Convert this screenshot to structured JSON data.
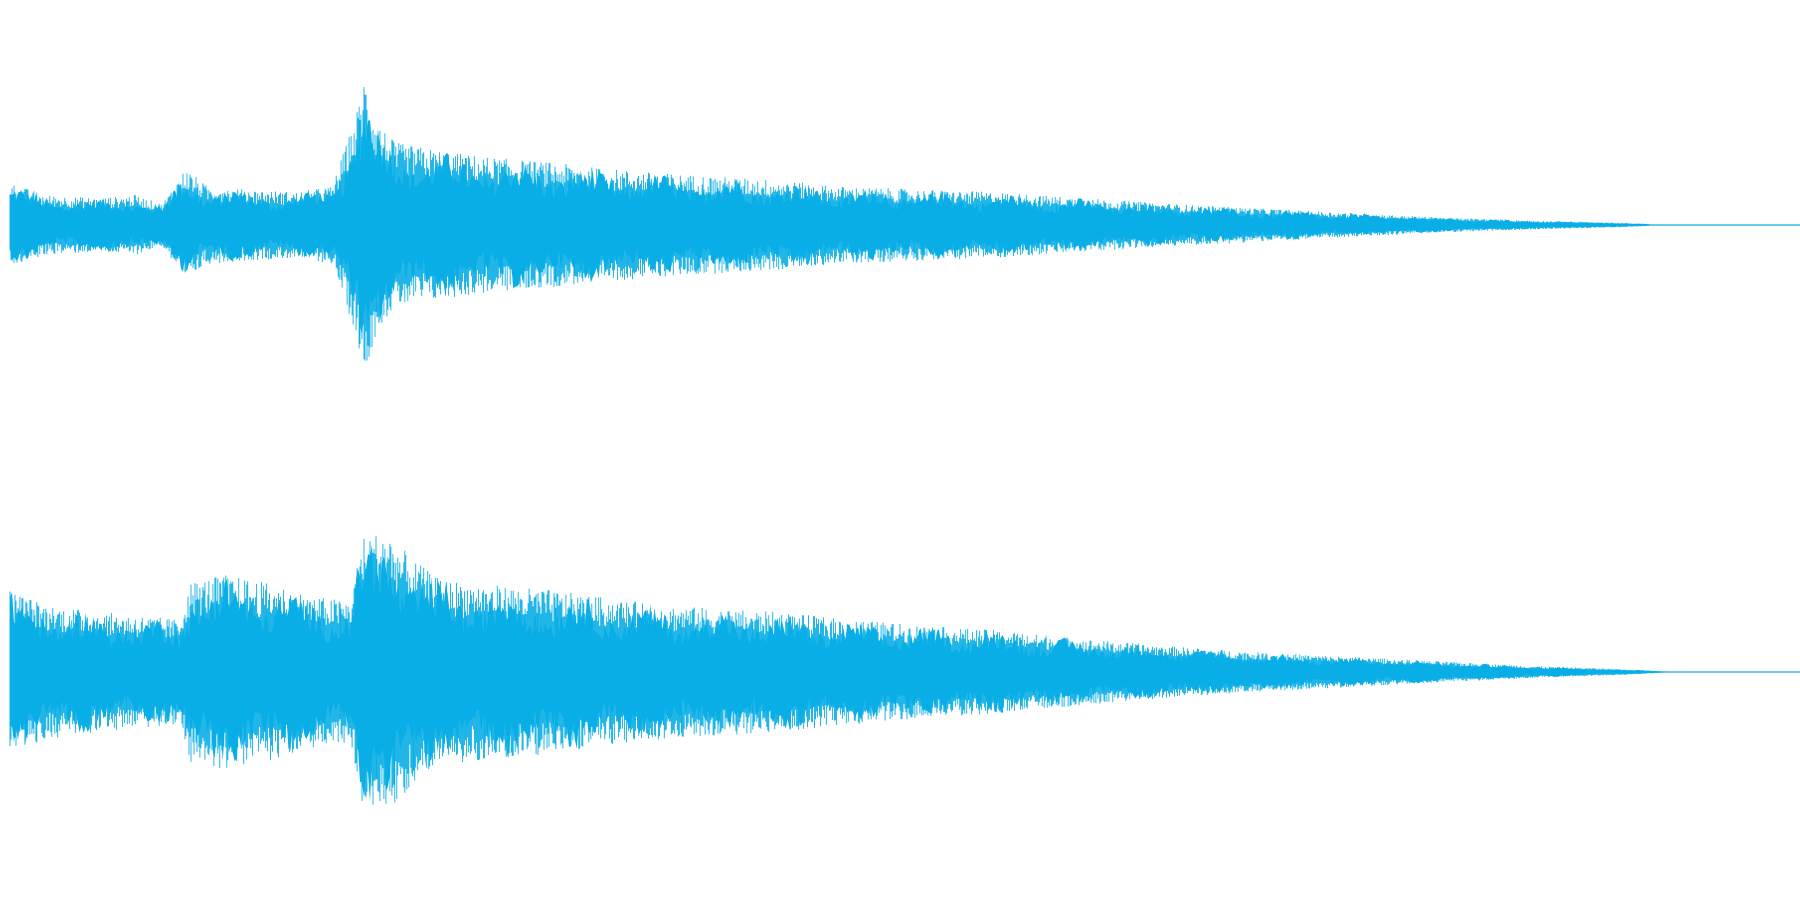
{
  "chart_data": {
    "type": "area",
    "color": "#0aaee6",
    "x_range": [
      0,
      1
    ],
    "y_range": [
      -1,
      1
    ],
    "grid": false,
    "legend": "none",
    "channels": [
      {
        "envelope": [
          [
            0.0,
            0.28
          ],
          [
            0.02,
            0.2
          ],
          [
            0.05,
            0.18
          ],
          [
            0.07,
            0.2
          ],
          [
            0.085,
            0.14
          ],
          [
            0.098,
            0.38
          ],
          [
            0.11,
            0.26
          ],
          [
            0.13,
            0.24
          ],
          [
            0.16,
            0.22
          ],
          [
            0.18,
            0.26
          ],
          [
            0.193,
            0.72
          ],
          [
            0.198,
            1.0
          ],
          [
            0.205,
            0.7
          ],
          [
            0.215,
            0.55
          ],
          [
            0.23,
            0.52
          ],
          [
            0.25,
            0.48
          ],
          [
            0.27,
            0.45
          ],
          [
            0.3,
            0.42
          ],
          [
            0.33,
            0.38
          ],
          [
            0.36,
            0.35
          ],
          [
            0.4,
            0.32
          ],
          [
            0.43,
            0.3
          ],
          [
            0.46,
            0.26
          ],
          [
            0.5,
            0.24
          ],
          [
            0.55,
            0.22
          ],
          [
            0.6,
            0.18
          ],
          [
            0.65,
            0.14
          ],
          [
            0.7,
            0.11
          ],
          [
            0.75,
            0.08
          ],
          [
            0.8,
            0.05
          ],
          [
            0.85,
            0.03
          ],
          [
            0.9,
            0.015
          ],
          [
            0.913,
            0.008
          ],
          [
            0.92,
            0.0
          ],
          [
            1.0,
            0.0
          ]
        ]
      },
      {
        "envelope": [
          [
            0.0,
            0.55
          ],
          [
            0.02,
            0.45
          ],
          [
            0.05,
            0.4
          ],
          [
            0.07,
            0.38
          ],
          [
            0.095,
            0.35
          ],
          [
            0.1,
            0.6
          ],
          [
            0.12,
            0.65
          ],
          [
            0.15,
            0.58
          ],
          [
            0.17,
            0.5
          ],
          [
            0.19,
            0.48
          ],
          [
            0.197,
            0.9
          ],
          [
            0.21,
            0.95
          ],
          [
            0.225,
            0.75
          ],
          [
            0.24,
            0.62
          ],
          [
            0.27,
            0.58
          ],
          [
            0.3,
            0.55
          ],
          [
            0.33,
            0.5
          ],
          [
            0.36,
            0.45
          ],
          [
            0.4,
            0.42
          ],
          [
            0.43,
            0.4
          ],
          [
            0.46,
            0.36
          ],
          [
            0.5,
            0.32
          ],
          [
            0.52,
            0.3
          ],
          [
            0.55,
            0.28
          ],
          [
            0.6,
            0.22
          ],
          [
            0.65,
            0.17
          ],
          [
            0.7,
            0.13
          ],
          [
            0.75,
            0.1
          ],
          [
            0.8,
            0.07
          ],
          [
            0.85,
            0.04
          ],
          [
            0.9,
            0.02
          ],
          [
            0.92,
            0.008
          ],
          [
            0.93,
            0.0
          ],
          [
            1.0,
            0.0
          ]
        ]
      }
    ]
  }
}
